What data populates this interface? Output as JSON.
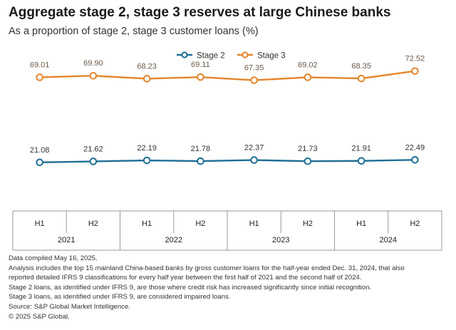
{
  "title": "Aggregate stage 2, stage 3 reserves at large Chinese banks",
  "subtitle": "As a proportion of stage 2, stage 3 customer loans (%)",
  "colors": {
    "stage2": "#1f6e94",
    "stage3": "#e4862b",
    "axis": "#9a9a9a",
    "text": "#333333"
  },
  "chart_data": {
    "type": "line",
    "categories": [
      "H1",
      "H2",
      "H1",
      "H2",
      "H1",
      "H2",
      "H1",
      "H2"
    ],
    "years": [
      "2021",
      "2022",
      "2023",
      "2024"
    ],
    "series": [
      {
        "name": "Stage 2",
        "values": [
          21.08,
          21.62,
          22.19,
          21.78,
          22.37,
          21.73,
          21.91,
          22.49
        ]
      },
      {
        "name": "Stage 3",
        "values": [
          69.01,
          69.9,
          68.23,
          69.11,
          67.35,
          69.02,
          68.35,
          72.52
        ]
      }
    ],
    "ylim": [
      0,
      80
    ],
    "grid": false,
    "legend_position": "top-center",
    "data_labels": true
  },
  "footnotes": [
    "Data compiled May 16, 2025.",
    "Analysis includes the top 15 mainland China-based banks by gross customer loans for the half-year ended Dec. 31, 2024, that also",
    "reported detailed IFRS 9 classifications for every half year between the first half of 2021 and the second half of 2024.",
    "Stage 2 loans, as identified under IFRS 9, are those where credit risk has increased significantly since initial recognition.",
    "Stage 3 loans, as identified under IFRS 9, are considered impaired loans.",
    "Source: S&P Global Market Intelligence.",
    "© 2025 S&P Global."
  ]
}
